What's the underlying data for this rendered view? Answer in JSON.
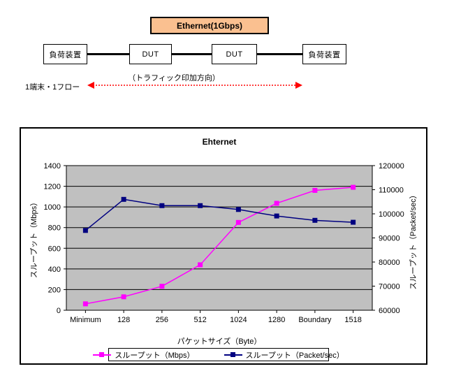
{
  "diagram": {
    "ethernet_label": "Ethernet(1Gbps)",
    "load_device_left": "負荷装置",
    "dut_left": "DUT",
    "dut_right": "DUT",
    "load_device_right": "負荷装置",
    "traffic_direction_label": "（トラフィック印加方向）",
    "flow_label": "1端末・1フロー"
  },
  "chart_data": {
    "type": "line",
    "title": "Ehternet",
    "xlabel": "パケットサイズ（Byte）",
    "left_ylabel": "スループット（Mbps）",
    "right_ylabel": "スループット（Packet/sec）",
    "categories": [
      "Minimum",
      "128",
      "256",
      "512",
      "1024",
      "1280",
      "Boundary",
      "1518"
    ],
    "series": [
      {
        "name": "スループット（Mbps）",
        "axis": "left",
        "color": "#FF00FF",
        "marker": "square",
        "values": [
          62,
          130,
          232,
          440,
          850,
          1035,
          1160,
          1190
        ]
      },
      {
        "name": "スループット（Packet/sec）",
        "axis": "right",
        "color": "#000080",
        "marker": "square",
        "values": [
          93100,
          106000,
          103400,
          103400,
          101800,
          99100,
          97300,
          96500
        ]
      }
    ],
    "left_axis": {
      "min": 0,
      "max": 1400,
      "step": 200
    },
    "right_axis": {
      "min": 60000,
      "max": 120000,
      "step": 10000
    },
    "grid": "horizontal",
    "legend_position": "bottom",
    "plot_bg": "#C0C0C0"
  },
  "colors": {
    "eth_box_bg": "#FAC090",
    "arrow_red": "#FF0000",
    "plot_bg": "#C0C0C0",
    "series_mbps": "#FF00FF",
    "series_pps": "#000080"
  }
}
